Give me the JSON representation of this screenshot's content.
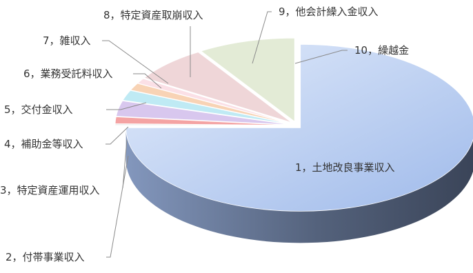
{
  "chart_data": {
    "type": "pie",
    "style": "3d-exploded",
    "legend": "none",
    "categories": [
      "1，土地改良事業収入",
      "2，付帯事業収入",
      "3，特定資産運用収入",
      "4，補助金等収入",
      "5，交付金収入",
      "6，業務受託料収入",
      "7，雑収入",
      "8，特定資産取崩収入",
      "9，他会計繰入金収入",
      "10，繰越金"
    ],
    "values": [
      75.0,
      0.3,
      1.3,
      3.0,
      2.0,
      1.4,
      1.0,
      7.0,
      9.0,
      0.0
    ],
    "colors": {
      "top": [
        "#c9d9f6",
        "#ececec",
        "#f4a3a3",
        "#d8c7ee",
        "#bfeaf4",
        "#f8d3b5",
        "#fbe0e6",
        "#efd6d8",
        "#e3ebd6",
        "#dcdcdc"
      ],
      "side": [
        "#54627c",
        "#909090",
        "#b55a5a",
        "#8e7fa6",
        "#77a8b4",
        "#b7906e",
        "#b59aa0",
        "#a79395",
        "#98a68a",
        "#909090"
      ]
    }
  }
}
